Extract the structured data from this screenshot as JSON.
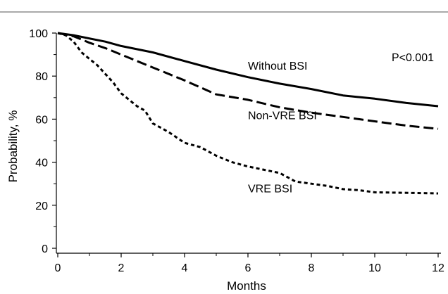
{
  "chart_data": {
    "type": "line",
    "xlabel": "Months",
    "ylabel": "Probability, %",
    "xlim": [
      0,
      12
    ],
    "ylim": [
      0,
      100
    ],
    "x_ticks": [
      0,
      2,
      4,
      6,
      8,
      10,
      12
    ],
    "y_ticks": [
      0,
      20,
      40,
      60,
      80,
      100
    ],
    "annotation": "P<0.001",
    "series": [
      {
        "name": "Without BSI",
        "dash": "solid",
        "points": [
          [
            0,
            100
          ],
          [
            0.5,
            99
          ],
          [
            1,
            97.5
          ],
          [
            1.5,
            96
          ],
          [
            2,
            94
          ],
          [
            3,
            91
          ],
          [
            4,
            87
          ],
          [
            5,
            83
          ],
          [
            6,
            79.5
          ],
          [
            7,
            76.5
          ],
          [
            8,
            74
          ],
          [
            9,
            71
          ],
          [
            10,
            69.5
          ],
          [
            11,
            67.5
          ],
          [
            12,
            66
          ]
        ]
      },
      {
        "name": "Non-VRE BSI",
        "dash": "long",
        "points": [
          [
            0,
            100
          ],
          [
            0.5,
            98.5
          ],
          [
            1,
            95.5
          ],
          [
            1.5,
            93
          ],
          [
            2,
            90
          ],
          [
            3,
            84
          ],
          [
            4,
            78
          ],
          [
            5,
            71.5
          ],
          [
            6,
            69
          ],
          [
            7,
            65.5
          ],
          [
            8,
            63
          ],
          [
            9,
            61
          ],
          [
            10,
            59
          ],
          [
            11,
            57
          ],
          [
            12,
            55.5
          ]
        ]
      },
      {
        "name": "VRE BSI",
        "dash": "short",
        "points": [
          [
            0,
            100
          ],
          [
            0.25,
            99
          ],
          [
            0.5,
            96
          ],
          [
            0.75,
            91
          ],
          [
            1,
            88
          ],
          [
            1.25,
            85
          ],
          [
            1.5,
            81
          ],
          [
            1.75,
            77
          ],
          [
            2,
            72
          ],
          [
            2.25,
            69
          ],
          [
            2.5,
            66
          ],
          [
            2.75,
            64
          ],
          [
            3,
            58
          ],
          [
            3.25,
            56
          ],
          [
            3.5,
            54
          ],
          [
            4,
            49
          ],
          [
            4.5,
            47
          ],
          [
            5,
            43
          ],
          [
            5.5,
            40
          ],
          [
            6,
            38
          ],
          [
            7,
            35
          ],
          [
            7.5,
            31
          ],
          [
            8,
            30
          ],
          [
            8.5,
            29
          ],
          [
            9,
            27.5
          ],
          [
            9.5,
            27
          ],
          [
            10,
            26
          ],
          [
            12,
            25.5
          ]
        ]
      }
    ],
    "labels": [
      {
        "text": "Without BSI",
        "x": 6,
        "y": 83
      },
      {
        "text": "Non-VRE BSI",
        "x": 6,
        "y": 60
      },
      {
        "text": "VRE BSI",
        "x": 6,
        "y": 26
      }
    ]
  }
}
